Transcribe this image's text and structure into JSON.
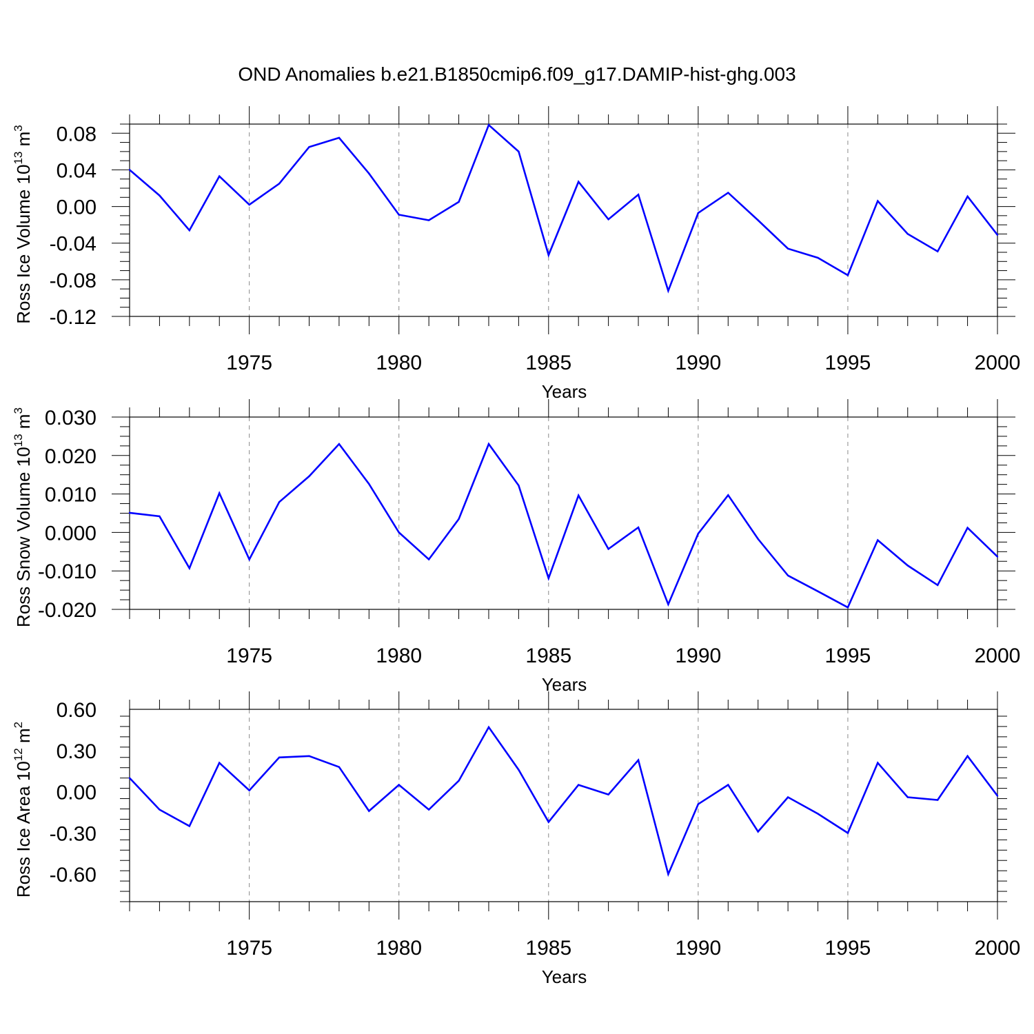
{
  "title": "OND Anomalies b.e21.B1850cmip6.f09_g17.DAMIP-hist-ghg.003",
  "colors": {
    "line": "#0000ff",
    "axis": "#000000",
    "grid": "#888888"
  },
  "chart_data": [
    {
      "type": "line",
      "xlabel": "Years",
      "ylabel": {
        "prefix": "Ross Ice Volume 10",
        "exponent": "13",
        "unit": " m",
        "unit_exponent": "3"
      },
      "xlim": [
        1971,
        2000
      ],
      "ylim": [
        -0.12,
        0.09
      ],
      "x_ticks": [
        1975,
        1980,
        1985,
        1990,
        1995,
        2000
      ],
      "y_ticks": [
        -0.12,
        -0.08,
        -0.04,
        0.0,
        0.04,
        0.08
      ],
      "y_tick_labels": [
        "-0.12",
        "-0.08",
        "-0.04",
        "0.00",
        "0.04",
        "0.08"
      ],
      "grid": "vertical dashed at major x ticks",
      "x": [
        1971,
        1972,
        1973,
        1974,
        1975,
        1976,
        1977,
        1978,
        1979,
        1980,
        1981,
        1982,
        1983,
        1984,
        1985,
        1986,
        1987,
        1988,
        1989,
        1990,
        1991,
        1992,
        1993,
        1994,
        1995,
        1996,
        1997,
        1998,
        1999,
        2000
      ],
      "values": [
        0.04,
        0.012,
        -0.026,
        0.033,
        0.002,
        0.025,
        0.065,
        0.075,
        0.036,
        -0.009,
        -0.015,
        0.005,
        0.089,
        0.06,
        -0.053,
        0.027,
        -0.014,
        0.013,
        -0.092,
        -0.007,
        0.015,
        -0.015,
        -0.046,
        -0.056,
        -0.075,
        0.006,
        -0.03,
        -0.049,
        0.011,
        -0.031
      ]
    },
    {
      "type": "line",
      "xlabel": "Years",
      "ylabel": {
        "prefix": "Ross Snow Volume 10",
        "exponent": "13",
        "unit": " m",
        "unit_exponent": "3"
      },
      "xlim": [
        1971,
        2000
      ],
      "ylim": [
        -0.02,
        0.03
      ],
      "x_ticks": [
        1975,
        1980,
        1985,
        1990,
        1995,
        2000
      ],
      "y_ticks": [
        -0.02,
        -0.01,
        0.0,
        0.01,
        0.02,
        0.03
      ],
      "y_tick_labels": [
        "-0.020",
        "-0.010",
        "0.000",
        "0.010",
        "0.020",
        "0.030"
      ],
      "grid": "vertical dashed at major x ticks",
      "x": [
        1971,
        1972,
        1973,
        1974,
        1975,
        1976,
        1977,
        1978,
        1979,
        1980,
        1981,
        1982,
        1983,
        1984,
        1985,
        1986,
        1987,
        1988,
        1989,
        1990,
        1991,
        1992,
        1993,
        1994,
        1995,
        1996,
        1997,
        1998,
        1999,
        2000
      ],
      "values": [
        0.0051,
        0.0042,
        -0.0093,
        0.0102,
        -0.007,
        0.0079,
        0.0146,
        0.023,
        0.0126,
        0.0,
        -0.007,
        0.0035,
        0.023,
        0.0122,
        -0.0119,
        0.0096,
        -0.0043,
        0.0013,
        -0.0187,
        -0.0003,
        0.0097,
        -0.0017,
        -0.0112,
        -0.0153,
        -0.0195,
        -0.002,
        -0.0086,
        -0.0137,
        0.0012,
        -0.0063
      ]
    },
    {
      "type": "line",
      "xlabel": "Years",
      "ylabel": {
        "prefix": "Ross Ice Area 10",
        "exponent": "12",
        "unit": " m",
        "unit_exponent": "2"
      },
      "xlim": [
        1971,
        2000
      ],
      "ylim": [
        -0.8,
        0.6
      ],
      "x_ticks": [
        1975,
        1980,
        1985,
        1990,
        1995,
        2000
      ],
      "y_ticks": [
        -0.6,
        -0.3,
        0.0,
        0.3,
        0.6
      ],
      "y_tick_labels": [
        "-0.60",
        "-0.30",
        "0.00",
        "0.30",
        "0.60"
      ],
      "grid": "vertical dashed at major x ticks",
      "x": [
        1971,
        1972,
        1973,
        1974,
        1975,
        1976,
        1977,
        1978,
        1979,
        1980,
        1981,
        1982,
        1983,
        1984,
        1985,
        1986,
        1987,
        1988,
        1989,
        1990,
        1991,
        1992,
        1993,
        1994,
        1995,
        1996,
        1997,
        1998,
        1999,
        2000
      ],
      "values": [
        0.1,
        -0.13,
        -0.25,
        0.21,
        0.01,
        0.25,
        0.26,
        0.18,
        -0.14,
        0.05,
        -0.13,
        0.08,
        0.47,
        0.16,
        -0.22,
        0.05,
        -0.02,
        0.23,
        -0.6,
        -0.09,
        0.05,
        -0.29,
        -0.04,
        -0.16,
        -0.3,
        0.21,
        -0.04,
        -0.06,
        0.26,
        -0.03
      ]
    }
  ]
}
